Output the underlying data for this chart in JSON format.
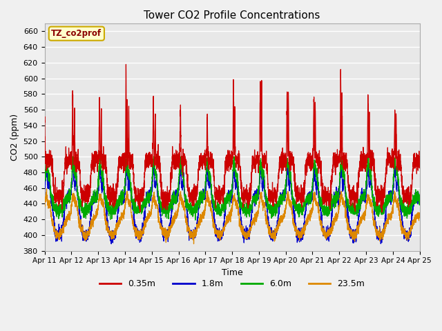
{
  "title": "Tower CO2 Profile Concentrations",
  "xlabel": "Time",
  "ylabel": "CO2 (ppm)",
  "ylim": [
    380,
    670
  ],
  "yticks": [
    380,
    400,
    420,
    440,
    460,
    480,
    500,
    520,
    540,
    560,
    580,
    600,
    620,
    640,
    660
  ],
  "x_labels": [
    "Apr 11",
    "Apr 12",
    "Apr 13",
    "Apr 14",
    "Apr 15",
    "Apr 16",
    "Apr 17",
    "Apr 18",
    "Apr 19",
    "Apr 20",
    "Apr 21",
    "Apr 22",
    "Apr 23",
    "Apr 24",
    "Apr 25"
  ],
  "colors": {
    "0.35m": "#cc0000",
    "1.8m": "#0000cc",
    "6.0m": "#00aa00",
    "23.5m": "#dd8800"
  },
  "legend_label": "TZ_co2prof",
  "legend_bg": "#ffffcc",
  "legend_border": "#ccaa00",
  "plot_bg": "#e8e8e8",
  "fig_bg": "#f0f0f0",
  "grid_color": "#ffffff",
  "n_days": 14,
  "pts_per_day": 288,
  "figsize": [
    6.4,
    4.8
  ],
  "dpi": 100
}
